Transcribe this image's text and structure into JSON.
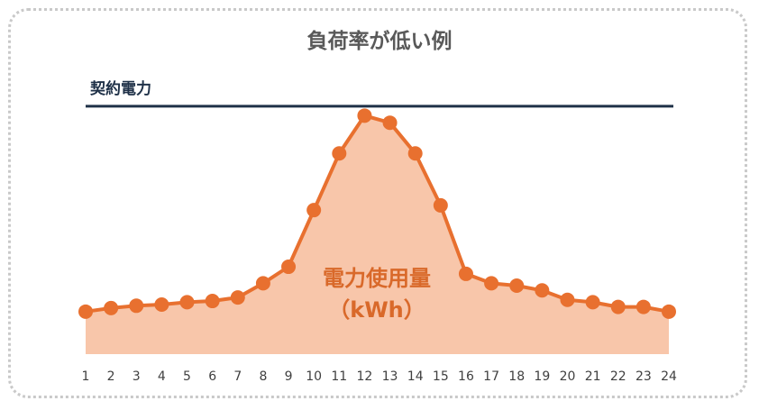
{
  "title": "負荷率が低い例",
  "colors": {
    "area": "#f8c6aa",
    "line": "#e8702f",
    "contract_line": "#1f3148",
    "title": "#595959",
    "usage_label": "#d9692a"
  },
  "chart_data": {
    "type": "area",
    "title": "負荷率が低い例",
    "x": [
      "1",
      "2",
      "3",
      "4",
      "5",
      "6",
      "7",
      "8",
      "9",
      "10",
      "11",
      "12",
      "13",
      "14",
      "15",
      "16",
      "17",
      "18",
      "19",
      "20",
      "21",
      "22",
      "23",
      "24"
    ],
    "series": [
      {
        "name": "電力使用量（kWh）",
        "values": [
          17,
          18.5,
          19.5,
          20,
          21,
          21.5,
          23,
          29,
          36,
          60,
          84,
          100,
          97,
          84,
          62,
          33,
          29,
          28,
          26,
          22,
          21,
          19,
          19,
          17
        ]
      }
    ],
    "ylim": [
      -1,
      107
    ],
    "reference_line": {
      "label": "契約電力",
      "value": 104
    },
    "annotation": {
      "line1": "電力使用量",
      "line2": "（kWh）"
    },
    "grid": false,
    "legend": "none"
  }
}
